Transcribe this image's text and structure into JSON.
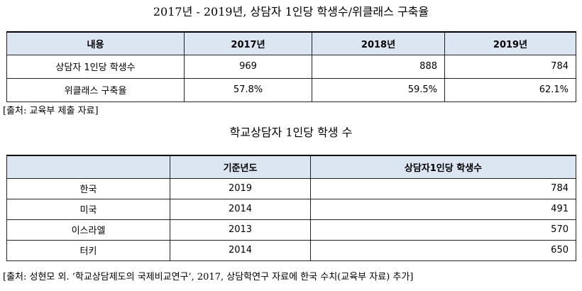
{
  "section1": {
    "title": "2017년 - 2019년, 상담자 1인당 학생수/위클래스 구축율",
    "headers": [
      "내용",
      "2017년",
      "2018년",
      "2019년"
    ],
    "rows": [
      [
        "상담자 1인당 학생수",
        "969",
        "888",
        "784"
      ],
      [
        "위클래스 구축율",
        "57.8%",
        "59.5%",
        "62.1%"
      ]
    ],
    "source": "[출처: 교육부 제출 자료]"
  },
  "section2": {
    "title": "학교상담자 1인당 학생 수",
    "headers": [
      "",
      "기준년도",
      "상담자1인당 학생수"
    ],
    "rows": [
      [
        "한국",
        "2019",
        "784"
      ],
      [
        "미국",
        "2014",
        "491"
      ],
      [
        "이스라엘",
        "2013",
        "570"
      ],
      [
        "터키",
        "2014",
        "650"
      ]
    ],
    "source": "[출처: 성현모 외. ‘학교상담제도의 국제비교연구’, 2017, 상담학연구 자료에 한국 수치(교육부 자료) 추가]"
  }
}
